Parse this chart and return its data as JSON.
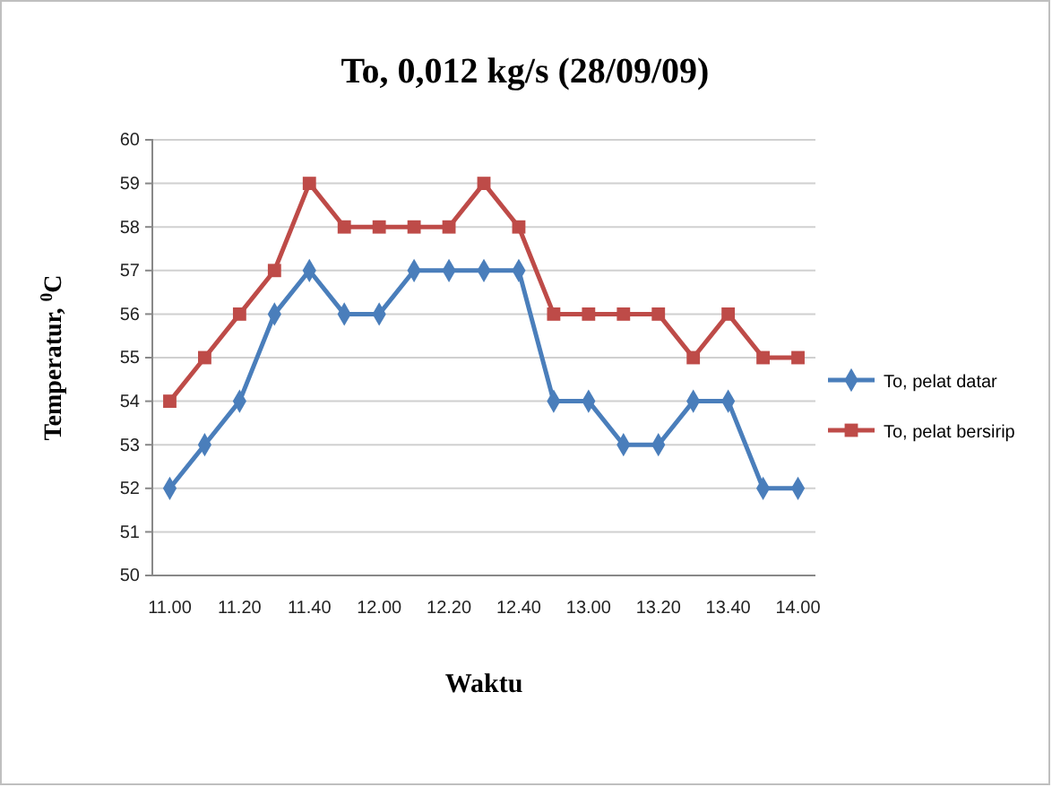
{
  "chart_data": {
    "type": "line",
    "title": "To, 0,012 kg/s (28/09/09)",
    "xlabel": "Waktu",
    "ylabel": "Temperatur, $^{0}$C",
    "categories": [
      "11.00",
      null,
      "11.20",
      null,
      "11.40",
      null,
      "12.00",
      null,
      "12.20",
      null,
      "12.40",
      null,
      "13.00",
      null,
      "13.20",
      null,
      "13.40",
      null,
      "14.00"
    ],
    "series": [
      {
        "name": "To, pelat datar",
        "color": "#4a7ebb",
        "marker": "diamond",
        "values": [
          52,
          53,
          54,
          56,
          57,
          56,
          56,
          57,
          57,
          57,
          57,
          54,
          54,
          53,
          53,
          54,
          54,
          52,
          52
        ]
      },
      {
        "name": "To, pelat bersirip",
        "color": "#be4b48",
        "marker": "square",
        "values": [
          54,
          55,
          56,
          57,
          59,
          58,
          58,
          58,
          58,
          59,
          58,
          56,
          56,
          56,
          56,
          55,
          56,
          55,
          55
        ]
      }
    ],
    "ylim": [
      50,
      60
    ],
    "yticks": [
      50,
      51,
      52,
      53,
      54,
      55,
      56,
      57,
      58,
      59,
      60
    ],
    "grid": "y",
    "legend": "right",
    "line_style": "solid"
  }
}
